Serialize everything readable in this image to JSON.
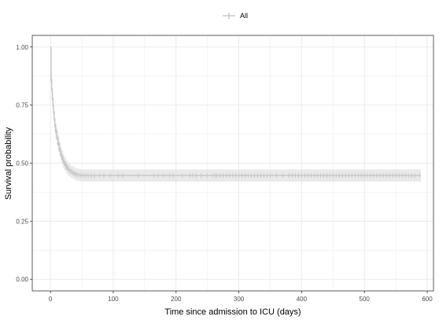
{
  "chart_data": {
    "type": "line",
    "subtype": "kaplan-meier",
    "xlabel": "Time since admission to ICU (days)",
    "ylabel": "Survival probability",
    "xlim": [
      -29,
      610
    ],
    "ylim": [
      -0.05,
      1.05
    ],
    "xticks": [
      0,
      100,
      200,
      300,
      400,
      500,
      600
    ],
    "yticks": [
      0.0,
      0.25,
      0.5,
      0.75,
      1.0
    ],
    "ytick_labels": [
      "0.00",
      "0.25",
      "0.50",
      "0.75",
      "1.00"
    ],
    "grid": true,
    "legend": {
      "position": "top",
      "entries": [
        "All"
      ]
    },
    "colors": {
      "series": "#c8c8c8",
      "band": "#d9d9d9",
      "grid": "#ebebeb",
      "panel_border": "#333333"
    },
    "series": [
      {
        "name": "All",
        "curve": {
          "x": [
            0,
            1,
            2,
            3,
            4,
            5,
            6,
            7,
            8,
            10,
            12,
            14,
            16,
            18,
            20,
            22,
            25,
            28,
            32,
            36,
            40,
            45,
            50,
            590
          ],
          "y": [
            1.0,
            0.86,
            0.82,
            0.78,
            0.75,
            0.72,
            0.69,
            0.665,
            0.64,
            0.61,
            0.585,
            0.56,
            0.54,
            0.525,
            0.51,
            0.497,
            0.483,
            0.472,
            0.463,
            0.456,
            0.451,
            0.448,
            0.447,
            0.447
          ],
          "lower": [
            1.0,
            0.83,
            0.79,
            0.75,
            0.72,
            0.69,
            0.66,
            0.635,
            0.61,
            0.58,
            0.555,
            0.53,
            0.51,
            0.495,
            0.48,
            0.468,
            0.455,
            0.445,
            0.437,
            0.43,
            0.425,
            0.422,
            0.421,
            0.421
          ],
          "upper": [
            1.0,
            0.89,
            0.85,
            0.81,
            0.78,
            0.75,
            0.72,
            0.695,
            0.67,
            0.64,
            0.615,
            0.59,
            0.57,
            0.555,
            0.54,
            0.526,
            0.511,
            0.499,
            0.489,
            0.482,
            0.477,
            0.474,
            0.473,
            0.473
          ]
        },
        "censor_times": [
          1,
          2,
          3,
          4,
          5,
          6,
          7,
          8,
          9,
          10,
          11,
          12,
          13,
          14,
          15,
          16,
          17,
          18,
          19,
          20,
          21,
          22,
          23,
          24,
          25,
          26,
          27,
          28,
          30,
          32,
          34,
          36,
          38,
          40,
          42,
          45,
          48,
          52,
          56,
          60,
          65,
          70,
          78,
          85,
          95,
          108,
          115,
          140,
          165,
          172,
          180,
          190,
          195,
          210,
          222,
          227,
          232,
          240,
          250,
          258,
          262,
          265,
          270,
          275,
          280,
          285,
          290,
          295,
          300,
          305,
          310,
          315,
          320,
          325,
          330,
          335,
          340,
          345,
          350,
          360,
          370,
          380,
          385,
          390,
          395,
          400,
          405,
          410,
          415,
          420,
          425,
          430,
          435,
          440,
          445,
          450,
          455,
          460,
          465,
          470,
          475,
          480,
          485,
          490,
          495,
          500,
          505,
          510,
          515,
          520,
          525,
          530,
          535,
          540,
          545,
          550,
          555,
          560,
          565,
          570,
          575,
          580,
          588
        ]
      }
    ]
  }
}
